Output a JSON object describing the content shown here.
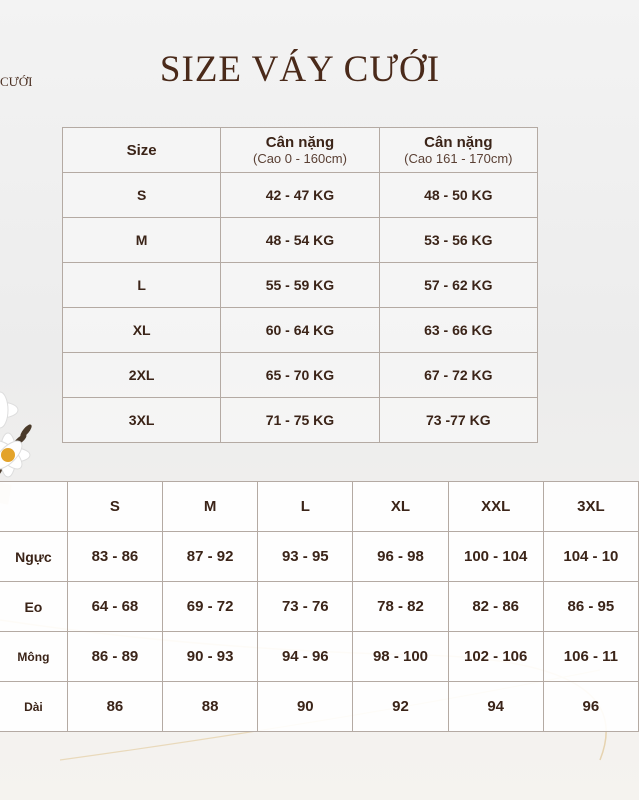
{
  "side_title": "CƯỚI",
  "title": "SIZE VÁY CƯỚI",
  "weight_table": {
    "headers": [
      {
        "main": "Size",
        "sub": ""
      },
      {
        "main": "Cân nặng",
        "sub": "(Cao 0 - 160cm)"
      },
      {
        "main": "Cân nặng",
        "sub": "(Cao 161 - 170cm)"
      }
    ],
    "rows": [
      [
        "S",
        "42 - 47 KG",
        "48 - 50 KG"
      ],
      [
        "M",
        "48 - 54 KG",
        "53 - 56 KG"
      ],
      [
        "L",
        "55 - 59 KG",
        "57 - 62 KG"
      ],
      [
        "XL",
        "60 - 64 KG",
        "63 - 66 KG"
      ],
      [
        "2XL",
        "65 - 70 KG",
        "67 - 72 KG"
      ],
      [
        "3XL",
        "71 - 75 KG",
        "73 -77 KG"
      ]
    ]
  },
  "measure_table": {
    "headers": [
      "",
      "S",
      "M",
      "L",
      "XL",
      "XXL",
      "3XL"
    ],
    "rows": [
      [
        "Ngực",
        "83 - 86",
        "87 - 92",
        "93 - 95",
        "96 - 98",
        "100 - 104",
        "104 - 10"
      ],
      [
        "Eo",
        "64 - 68",
        "69 - 72",
        "73 - 76",
        "78 - 82",
        "82 - 86",
        "86 - 95"
      ],
      [
        "Mông",
        "86 - 89",
        "90 - 93",
        "94 - 96",
        "98 - 100",
        "102 - 106",
        "106 - 11"
      ],
      [
        "Dài",
        "86",
        "88",
        "90",
        "92",
        "94",
        "96"
      ]
    ]
  },
  "colors": {
    "text": "#3b2418",
    "border": "#b4aaa3",
    "title": "#4a2a1a"
  }
}
